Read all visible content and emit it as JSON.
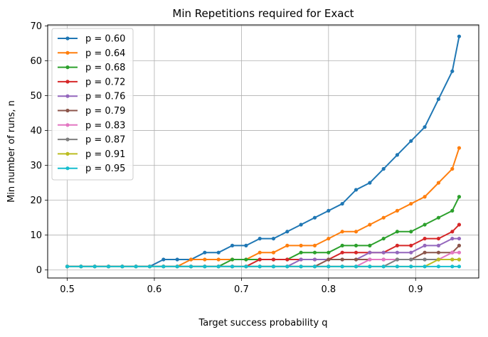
{
  "chart_data": {
    "type": "line",
    "title": "Min Repetitions required for Exact",
    "xlabel": "Target success probability q",
    "ylabel": "Min number of runs, n",
    "xlim": [
      0.4775,
      0.9725
    ],
    "ylim": [
      -2.3,
      70.3
    ],
    "xticks": [
      0.5,
      0.6,
      0.7,
      0.8,
      0.9
    ],
    "xtick_labels": [
      "0.5",
      "0.6",
      "0.7",
      "0.8",
      "0.9"
    ],
    "yticks": [
      0,
      10,
      20,
      30,
      40,
      50,
      60,
      70
    ],
    "ytick_labels": [
      "0",
      "10",
      "20",
      "30",
      "40",
      "50",
      "60",
      "70"
    ],
    "grid": true,
    "legend_position": "top-left",
    "x": [
      0.5,
      0.5158,
      0.5316,
      0.5474,
      0.5632,
      0.5789,
      0.5947,
      0.6105,
      0.6263,
      0.6421,
      0.6579,
      0.6737,
      0.6895,
      0.7053,
      0.7211,
      0.7368,
      0.7526,
      0.7684,
      0.7842,
      0.8,
      0.8158,
      0.8316,
      0.8474,
      0.8632,
      0.8789,
      0.8947,
      0.9105,
      0.9263,
      0.9421,
      0.95
    ],
    "series": [
      {
        "name": "p = 0.60",
        "color": "#1f77b4",
        "values": [
          1,
          1,
          1,
          1,
          1,
          1,
          1,
          3,
          3,
          3,
          5,
          5,
          7,
          7,
          9,
          9,
          11,
          13,
          15,
          17,
          19,
          23,
          25,
          29,
          33,
          37,
          41,
          49,
          57,
          67
        ]
      },
      {
        "name": "p = 0.64",
        "color": "#ff7f0e",
        "values": [
          1,
          1,
          1,
          1,
          1,
          1,
          1,
          1,
          1,
          3,
          3,
          3,
          3,
          3,
          5,
          5,
          7,
          7,
          7,
          9,
          11,
          11,
          13,
          15,
          17,
          19,
          21,
          25,
          29,
          35
        ]
      },
      {
        "name": "p = 0.68",
        "color": "#2ca02c",
        "values": [
          1,
          1,
          1,
          1,
          1,
          1,
          1,
          1,
          1,
          1,
          1,
          1,
          3,
          3,
          3,
          3,
          3,
          5,
          5,
          5,
          7,
          7,
          7,
          9,
          11,
          11,
          13,
          15,
          17,
          21
        ]
      },
      {
        "name": "p = 0.72",
        "color": "#d62728",
        "values": [
          1,
          1,
          1,
          1,
          1,
          1,
          1,
          1,
          1,
          1,
          1,
          1,
          1,
          1,
          3,
          3,
          3,
          3,
          3,
          3,
          5,
          5,
          5,
          5,
          7,
          7,
          9,
          9,
          11,
          13
        ]
      },
      {
        "name": "p = 0.76",
        "color": "#9467bd",
        "values": [
          1,
          1,
          1,
          1,
          1,
          1,
          1,
          1,
          1,
          1,
          1,
          1,
          1,
          1,
          1,
          1,
          1,
          3,
          3,
          3,
          3,
          3,
          5,
          5,
          5,
          5,
          7,
          7,
          9,
          9
        ]
      },
      {
        "name": "p = 0.79",
        "color": "#8c564b",
        "values": [
          1,
          1,
          1,
          1,
          1,
          1,
          1,
          1,
          1,
          1,
          1,
          1,
          1,
          1,
          1,
          1,
          1,
          1,
          1,
          3,
          3,
          3,
          3,
          3,
          3,
          3,
          5,
          5,
          5,
          7
        ]
      },
      {
        "name": "p = 0.83",
        "color": "#e377c2",
        "values": [
          1,
          1,
          1,
          1,
          1,
          1,
          1,
          1,
          1,
          1,
          1,
          1,
          1,
          1,
          1,
          1,
          1,
          1,
          1,
          1,
          1,
          1,
          3,
          3,
          3,
          3,
          3,
          3,
          5,
          5
        ]
      },
      {
        "name": "p = 0.87",
        "color": "#7f7f7f",
        "values": [
          1,
          1,
          1,
          1,
          1,
          1,
          1,
          1,
          1,
          1,
          1,
          1,
          1,
          1,
          1,
          1,
          1,
          1,
          1,
          1,
          1,
          1,
          1,
          1,
          3,
          3,
          3,
          3,
          3,
          3
        ]
      },
      {
        "name": "p = 0.91",
        "color": "#bcbd22",
        "values": [
          1,
          1,
          1,
          1,
          1,
          1,
          1,
          1,
          1,
          1,
          1,
          1,
          1,
          1,
          1,
          1,
          1,
          1,
          1,
          1,
          1,
          1,
          1,
          1,
          1,
          1,
          1,
          3,
          3,
          3
        ]
      },
      {
        "name": "p = 0.95",
        "color": "#17becf",
        "values": [
          1,
          1,
          1,
          1,
          1,
          1,
          1,
          1,
          1,
          1,
          1,
          1,
          1,
          1,
          1,
          1,
          1,
          1,
          1,
          1,
          1,
          1,
          1,
          1,
          1,
          1,
          1,
          1,
          1,
          1
        ]
      }
    ]
  }
}
